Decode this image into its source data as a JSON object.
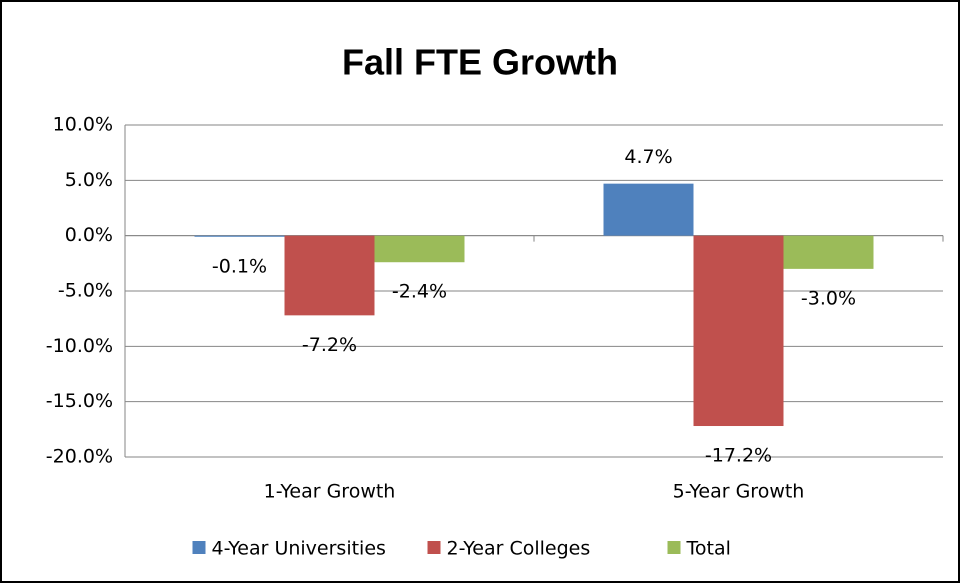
{
  "chart_data": {
    "type": "bar",
    "title": "Fall FTE Growth",
    "categories": [
      "1-Year Growth",
      "5-Year Growth"
    ],
    "series": [
      {
        "name": "4-Year Universities",
        "color": "#4f81bd",
        "values": [
          -0.1,
          4.7
        ],
        "value_labels": [
          "-0.1%",
          "4.7%"
        ]
      },
      {
        "name": "2-Year Colleges",
        "color": "#c0504d",
        "values": [
          -7.2,
          -17.2
        ],
        "value_labels": [
          "-7.2%",
          "-17.2%"
        ]
      },
      {
        "name": "Total",
        "color": "#9bbb59",
        "values": [
          -2.4,
          -3.0
        ],
        "value_labels": [
          "-2.4%",
          "-3.0%"
        ]
      }
    ],
    "ylim": [
      -20,
      10
    ],
    "yticks": [
      {
        "value": -20,
        "label": "-20.0%"
      },
      {
        "value": -15,
        "label": "-15.0%"
      },
      {
        "value": -10,
        "label": "-10.0%"
      },
      {
        "value": -5,
        "label": "-5.0%"
      },
      {
        "value": 0,
        "label": "0.0%"
      },
      {
        "value": 5,
        "label": "5.0%"
      },
      {
        "value": 10,
        "label": "10.0%"
      }
    ],
    "grid": true,
    "legend": "bottom"
  }
}
